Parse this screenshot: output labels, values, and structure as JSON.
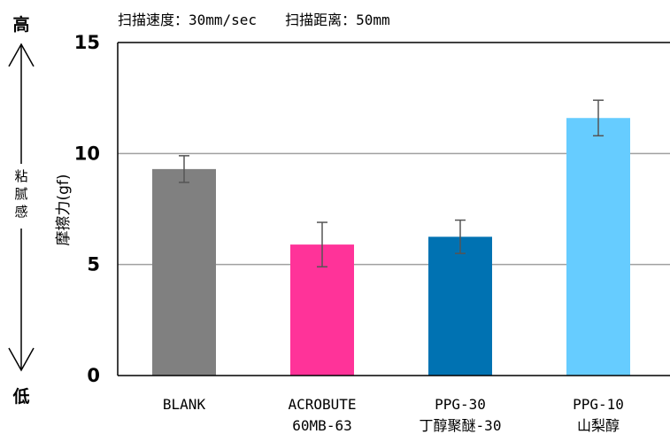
{
  "chart_data": {
    "type": "bar",
    "subtitle": "扫描速度：30mm/sec　　扫描距离：50mm",
    "ylabel": "摩擦力(gf)",
    "ylim": [
      0,
      15
    ],
    "yticks": [
      0,
      5,
      10,
      15
    ],
    "grid": true,
    "categories": [
      [
        "BLANK"
      ],
      [
        "ACROBUTE",
        "60MB-63"
      ],
      [
        "PPG-30",
        "丁醇聚醚-30"
      ],
      [
        "PPG-10",
        "山梨醇"
      ]
    ],
    "values": [
      9.3,
      5.9,
      6.25,
      11.6
    ],
    "errors": [
      0.6,
      1.0,
      0.75,
      0.8
    ],
    "colors": [
      "#808080",
      "#ff3399",
      "#0072b2",
      "#66ccff"
    ]
  },
  "side_axis": {
    "high": "高",
    "label_chars": [
      "粘",
      "腻",
      "感"
    ],
    "low": "低"
  }
}
